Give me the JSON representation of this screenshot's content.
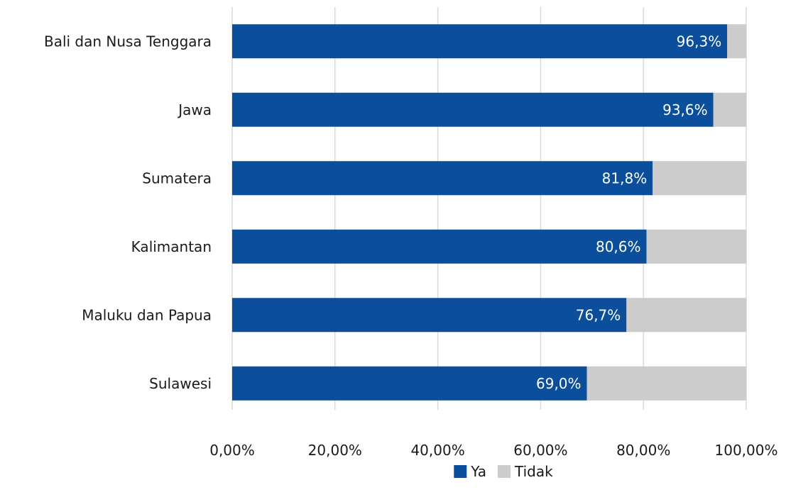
{
  "chart_data": {
    "type": "bar",
    "orientation": "horizontal",
    "stacked": true,
    "categories": [
      "Bali dan Nusa Tenggara",
      "Jawa",
      "Sumatera",
      "Kalimantan",
      "Maluku dan Papua",
      "Sulawesi"
    ],
    "series": [
      {
        "name": "Ya",
        "values": [
          96.3,
          93.6,
          81.8,
          80.6,
          76.7,
          69.0
        ],
        "labels": [
          "96,3%",
          "93,6%",
          "81,8%",
          "80,6%",
          "76,7%",
          "69,0%"
        ],
        "color": "#0b4f9c"
      },
      {
        "name": "Tidak",
        "values": [
          3.7,
          6.4,
          18.2,
          19.4,
          23.3,
          31.0
        ],
        "color": "#cccccc"
      }
    ],
    "xlim": [
      0,
      100
    ],
    "x_ticks": [
      0,
      20,
      40,
      60,
      80,
      100
    ],
    "x_tick_labels": [
      "0,00%",
      "20,00%",
      "40,00%",
      "60,00%",
      "80,00%",
      "100,00%"
    ],
    "grid": "vertical",
    "grid_color": "#d9d9d9",
    "legend_position": "bottom",
    "data_label_color": "#ffffff",
    "text_color": "#1a1a1a"
  }
}
